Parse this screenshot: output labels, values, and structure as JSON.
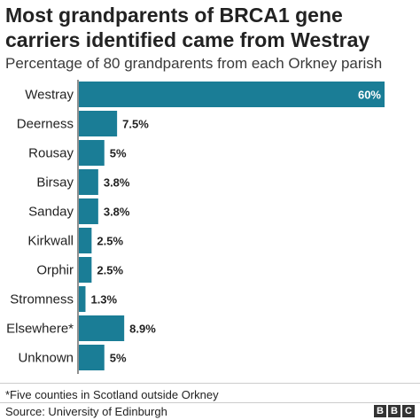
{
  "title": "Most grandparents of BRCA1 gene carriers identified came from Westray",
  "subtitle": "Percentage of 80 grandparents from each Orkney parish",
  "footnote": "*Five counties in Scotland outside Orkney",
  "source": "Source: University of Edinburgh",
  "logo_letters": [
    "B",
    "B",
    "C"
  ],
  "colors": {
    "bar": "#1a7d96",
    "axis": "#222222",
    "text": "#222222"
  },
  "chart_data": {
    "type": "bar",
    "orientation": "horizontal",
    "categories": [
      "Westray",
      "Deerness",
      "Rousay",
      "Birsay",
      "Sanday",
      "Kirkwall",
      "Orphir",
      "Stromness",
      "Elsewhere*",
      "Unknown"
    ],
    "values": [
      60,
      7.5,
      5,
      3.8,
      3.8,
      2.5,
      2.5,
      1.3,
      8.9,
      5
    ],
    "value_labels": [
      "60%",
      "7.5%",
      "5%",
      "3.8%",
      "3.8%",
      "2.5%",
      "2.5%",
      "1.3%",
      "8.9%",
      "5%"
    ],
    "xlim": [
      0,
      60
    ],
    "grid": false,
    "legend": "none"
  }
}
